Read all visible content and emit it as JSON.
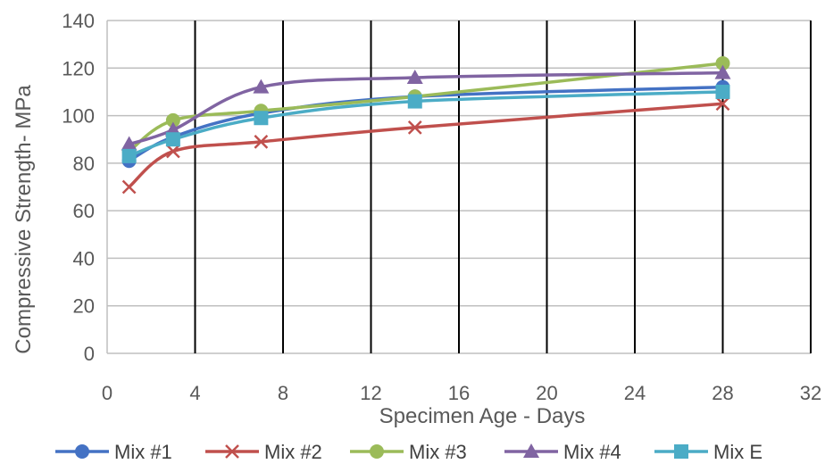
{
  "chart_data": {
    "type": "line",
    "title": "",
    "xlabel": "Specimen Age  - Days",
    "ylabel": "Compressive Strength- MPa",
    "xlim": [
      0,
      32
    ],
    "ylim": [
      0,
      140
    ],
    "xticks": [
      0,
      4,
      8,
      12,
      16,
      20,
      24,
      28,
      32
    ],
    "yticks": [
      0,
      20,
      40,
      60,
      80,
      100,
      120,
      140
    ],
    "grid": {
      "horizontal": true,
      "vertical": true
    },
    "legend_position": "bottom",
    "series": [
      {
        "name": "Mix #1",
        "color": "#4472c4",
        "marker": "circle",
        "x": [
          1,
          3,
          7,
          14,
          28
        ],
        "y": [
          81,
          91,
          101,
          108,
          112
        ]
      },
      {
        "name": "Mix #2",
        "color": "#c0504d",
        "marker": "x",
        "x": [
          1,
          3,
          7,
          14,
          28
        ],
        "y": [
          70,
          85,
          89,
          95,
          105
        ]
      },
      {
        "name": "Mix #3",
        "color": "#9bbb59",
        "marker": "circle",
        "x": [
          1,
          3,
          7,
          14,
          28
        ],
        "y": [
          85,
          98,
          102,
          108,
          122
        ]
      },
      {
        "name": "Mix #4",
        "color": "#8064a2",
        "marker": "triangle",
        "x": [
          1,
          3,
          7,
          14,
          28
        ],
        "y": [
          88,
          94,
          112,
          116,
          118
        ]
      },
      {
        "name": "Mix E",
        "color": "#4bacc6",
        "marker": "square",
        "x": [
          1,
          3,
          7,
          14,
          28
        ],
        "y": [
          83,
          90,
          99,
          106,
          110
        ]
      }
    ]
  }
}
